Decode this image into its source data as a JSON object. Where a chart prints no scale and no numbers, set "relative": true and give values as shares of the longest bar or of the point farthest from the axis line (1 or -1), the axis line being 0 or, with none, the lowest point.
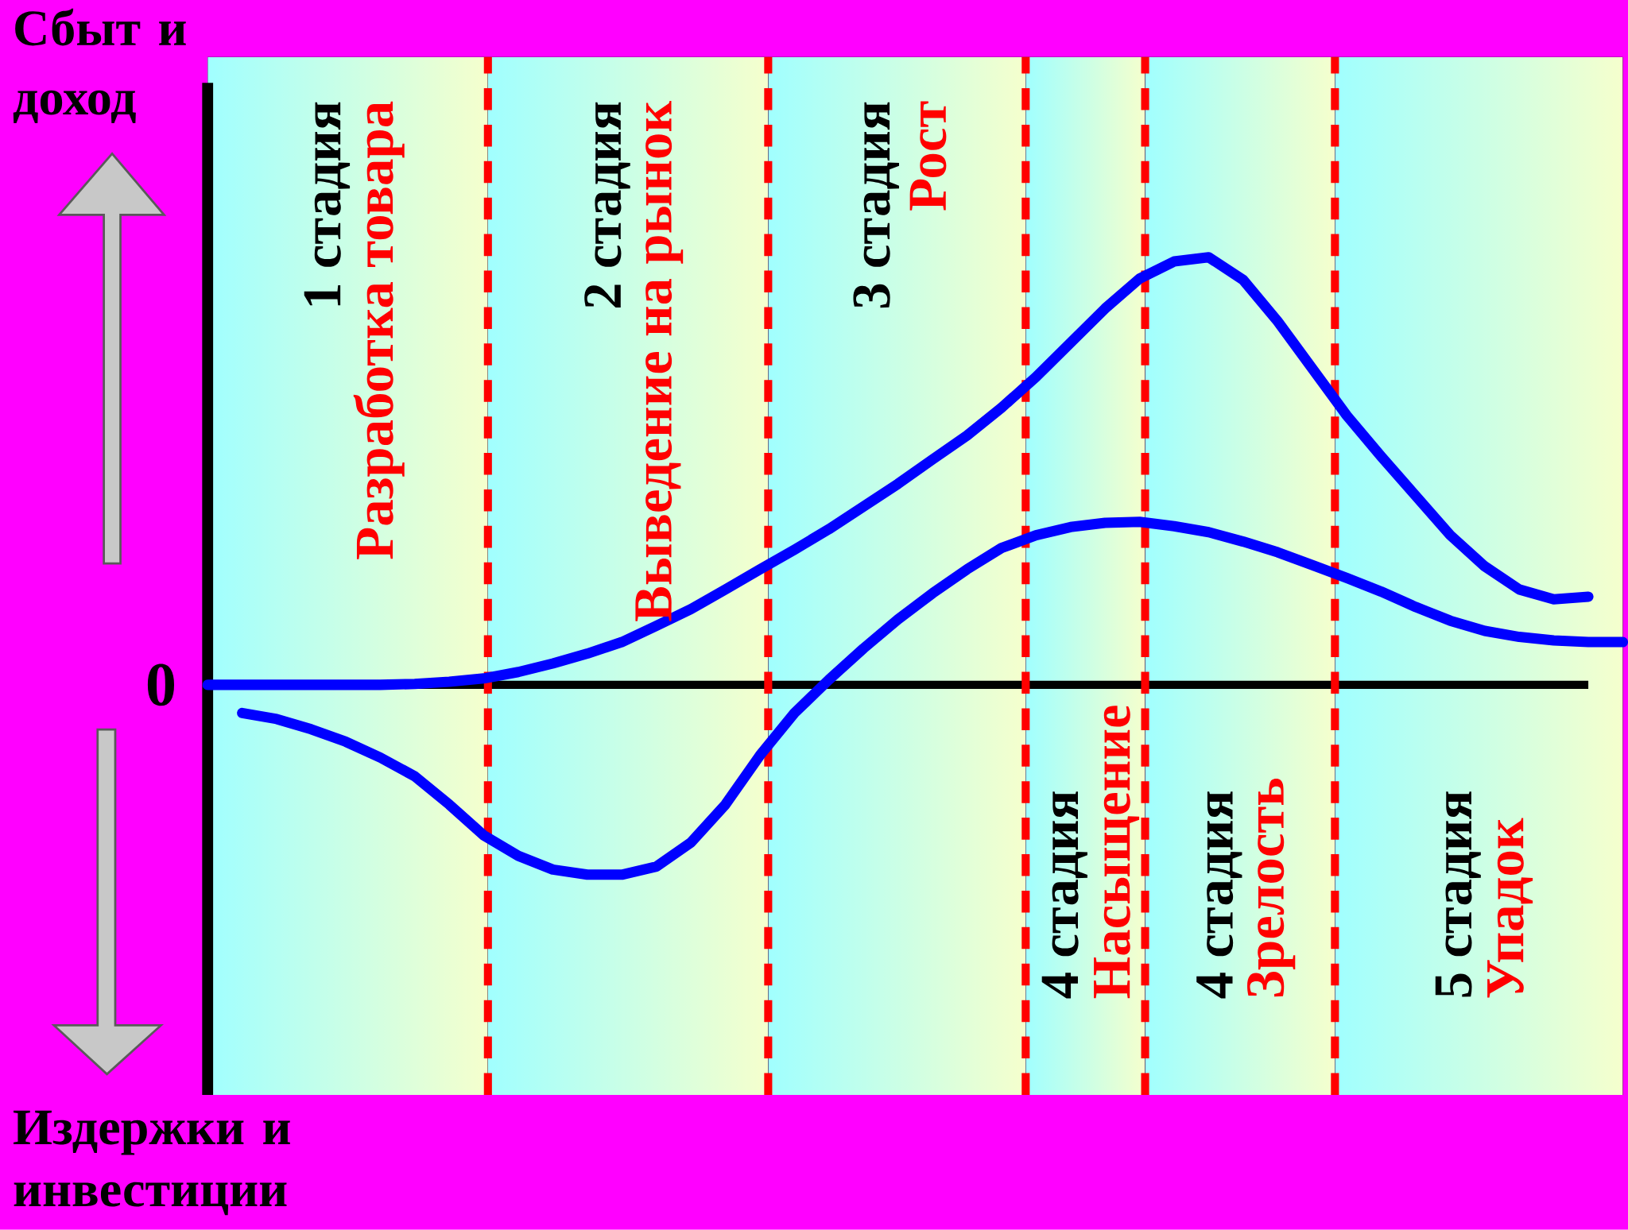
{
  "chart_data": {
    "type": "line",
    "relative": true,
    "categories": [
      null,
      null,
      null,
      null,
      null,
      null,
      null,
      null,
      null,
      null,
      null,
      null,
      null,
      null,
      null,
      null,
      null,
      null,
      null,
      null,
      null,
      null,
      null,
      null,
      null,
      null,
      null,
      null,
      null,
      null,
      null,
      null,
      null,
      null,
      null,
      null,
      null,
      null,
      null,
      null,
      null,
      null
    ],
    "series": [
      {
        "color": "#0000ff",
        "values": [
          0,
          0,
          0,
          0,
          0,
          0,
          0.002,
          0.007,
          0.015,
          0.03,
          0.05,
          0.073,
          0.1,
          0.138,
          0.177,
          0.223,
          0.27,
          0.316,
          0.364,
          0.417,
          0.47,
          0.527,
          0.583,
          0.648,
          0.72,
          0.8,
          0.88,
          0.95,
          0.99,
          1.0,
          0.947,
          0.85,
          0.74,
          0.63,
          0.534,
          0.442,
          0.35,
          0.277,
          0.223,
          0.2,
          0.206,
          null
        ]
      },
      {
        "color": "#0000ff",
        "values": [
          null,
          -0.066,
          -0.08,
          -0.104,
          -0.133,
          -0.17,
          -0.214,
          -0.28,
          -0.352,
          -0.4,
          -0.432,
          -0.444,
          -0.444,
          -0.425,
          -0.369,
          -0.28,
          -0.165,
          -0.066,
          0.012,
          0.085,
          0.153,
          0.214,
          0.27,
          0.32,
          0.35,
          0.369,
          0.379,
          0.381,
          0.371,
          0.357,
          0.335,
          0.31,
          0.28,
          0.25,
          0.218,
          0.182,
          0.15,
          0.126,
          0.112,
          0.104,
          0.1,
          0.1
        ]
      }
    ],
    "ylabel": "Сбыт и доход",
    "annotations": [
      "1 стадия",
      "Разработка товара",
      "2 стадия",
      "Выведение на рынок",
      "3 стадия",
      "Рост",
      "4 стадия",
      "Насыщение",
      "4 стадия",
      "Зрелость",
      "5 стадия",
      "Упадок",
      "Издержки и инвестиции",
      "0"
    ]
  }
}
